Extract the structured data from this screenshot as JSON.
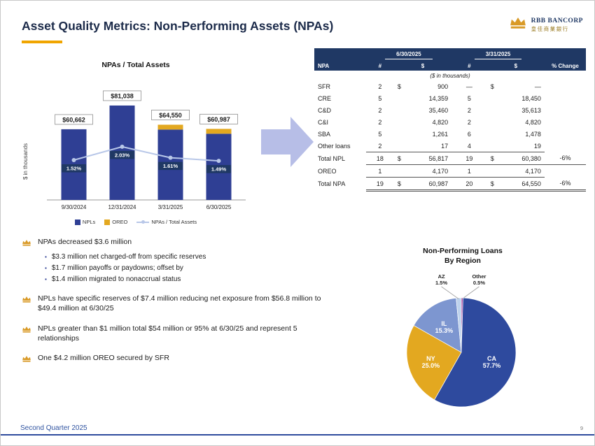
{
  "slide": {
    "title": "Asset Quality Metrics:  Non-Performing Assets (NPAs)",
    "footer_left": "Second Quarter 2025",
    "page_number": "9"
  },
  "logo": {
    "name": "RBB BANCORP",
    "chinese": "皇佳商業銀行"
  },
  "chart_data": [
    {
      "type": "bar",
      "title": "NPAs / Total Assets",
      "ylabel": "$ in thousands",
      "categories": [
        "9/30/2024",
        "12/31/2024",
        "3/31/2025",
        "6/30/2025"
      ],
      "series": [
        {
          "name": "NPLs",
          "color": "#2F3F94",
          "values": [
            60662,
            81038,
            60380,
            56817
          ]
        },
        {
          "name": "OREO",
          "color": "#E3A820",
          "values": [
            0,
            0,
            4170,
            4170
          ]
        }
      ],
      "total_labels": [
        "$60,662",
        "$81,038",
        "$64,550",
        "$60,987"
      ],
      "line_series": {
        "name": "NPAs / Total Assets",
        "color": "#B8C7E8",
        "values": [
          1.52,
          2.03,
          1.61,
          1.49
        ],
        "labels": [
          "1.52%",
          "2.03%",
          "1.61%",
          "1.49%"
        ]
      },
      "ylim": [
        0,
        90000
      ],
      "line_ylim": [
        0,
        4
      ],
      "legend_position": "bottom"
    },
    {
      "type": "pie",
      "title": "Non-Performing Loans\nBy Region",
      "slices": [
        {
          "label": "Other",
          "pct": 0.5,
          "color": "#A2399B"
        },
        {
          "label": "CA",
          "pct": 57.7,
          "color": "#2E4A9E"
        },
        {
          "label": "NY",
          "pct": 25.0,
          "color": "#E3A820"
        },
        {
          "label": "IL",
          "pct": 15.3,
          "color": "#7D96D0"
        },
        {
          "label": "AZ",
          "pct": 1.5,
          "color": "#BDD2EC"
        }
      ]
    }
  ],
  "table": {
    "col_groups": [
      "6/30/2025",
      "3/31/2025"
    ],
    "headers": [
      "NPA",
      "#",
      "$",
      "#",
      "$",
      "% Change"
    ],
    "note": "($ in thousands)",
    "rows": [
      {
        "label": "SFR",
        "cells": [
          "2",
          "900",
          "—",
          "—",
          ""
        ],
        "dollar": true
      },
      {
        "label": "CRE",
        "cells": [
          "5",
          "14,359",
          "5",
          "18,450",
          ""
        ]
      },
      {
        "label": "C&D",
        "cells": [
          "2",
          "35,460",
          "2",
          "35,613",
          ""
        ]
      },
      {
        "label": "C&I",
        "cells": [
          "2",
          "4,820",
          "2",
          "4,820",
          ""
        ]
      },
      {
        "label": "SBA",
        "cells": [
          "5",
          "1,261",
          "6",
          "1,478",
          ""
        ]
      },
      {
        "label": "Other loans",
        "cells": [
          "2",
          "17",
          "4",
          "19",
          ""
        ],
        "rule": "single"
      },
      {
        "label": "Total NPL",
        "cells": [
          "18",
          "56,817",
          "19",
          "60,380",
          "-6%"
        ],
        "dollar": true,
        "rule": "single",
        "total": true
      },
      {
        "label": "OREO",
        "cells": [
          "1",
          "4,170",
          "1",
          "4,170",
          ""
        ],
        "rule": "single"
      },
      {
        "label": "Total NPA",
        "cells": [
          "19",
          "60,987",
          "20",
          "64,550",
          "-6%"
        ],
        "dollar": true,
        "rule": "double",
        "total": true
      }
    ]
  },
  "bullets": [
    {
      "text": "NPAs decreased $3.6 million",
      "subs": [
        "$3.3 million net charged-off from specific reserves",
        "$1.7 million payoffs or paydowns; offset by",
        "$1.4 million migrated to nonaccrual status"
      ]
    },
    {
      "text": "NPLs have specific reserves of $7.4 million reducing net exposure from $56.8 million to $49.4 million at 6/30/25",
      "subs": []
    },
    {
      "text": "NPLs greater than $1 million total $54 million or 95% at 6/30/25 and represent 5 relationships",
      "subs": []
    },
    {
      "text": "One $4.2 million OREO secured by SFR",
      "subs": []
    }
  ]
}
